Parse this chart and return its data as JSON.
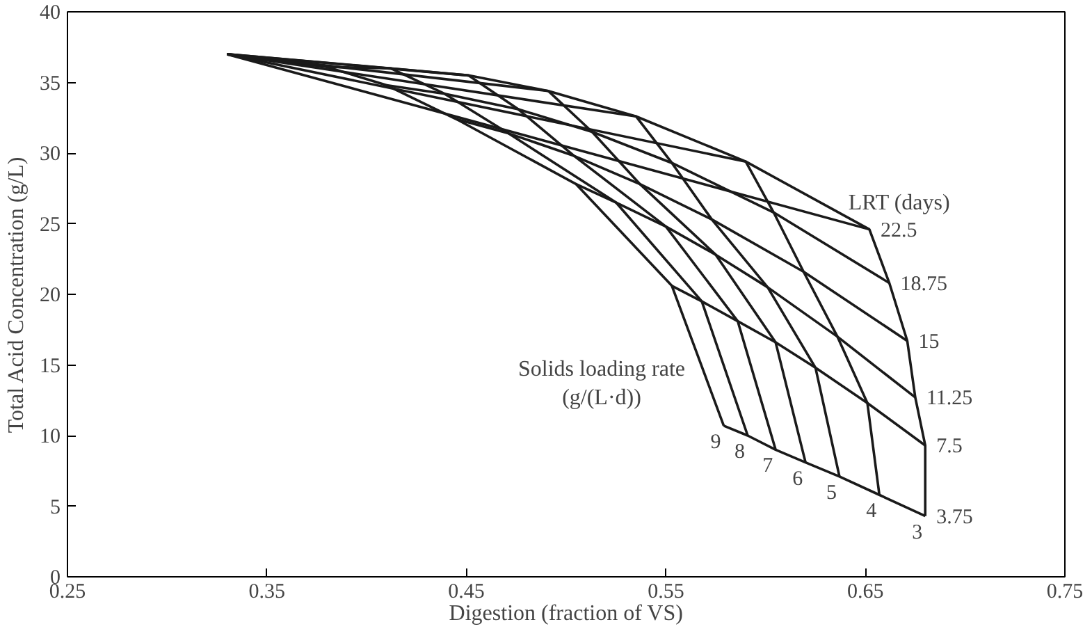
{
  "chart_data": {
    "type": "line",
    "xlabel": "Digestion (fraction of VS)",
    "ylabel": "Total Acid Concentration (g/L)",
    "xlim": [
      0.25,
      0.75
    ],
    "ylim": [
      0,
      40
    ],
    "xticks": [
      0.25,
      0.35,
      0.45,
      0.55,
      0.65,
      0.75
    ],
    "yticks": [
      0,
      5,
      10,
      15,
      20,
      25,
      30,
      35,
      40
    ],
    "grid": false,
    "legend": false,
    "marker": "none",
    "line_style": "solid",
    "annotations": [
      "LRT (days)",
      "Solids loading rate\n(g/(L·d))"
    ],
    "series": [
      {
        "name": "9",
        "color": "#1a1a1a",
        "x": [
          0.33,
          0.38,
          0.41,
          0.445,
          0.505,
          0.553,
          0.579
        ],
        "values": [
          37.0,
          36.1,
          34.8,
          32.4,
          27.8,
          20.6,
          10.7
        ]
      },
      {
        "name": "8",
        "color": "#1a1a1a",
        "x": [
          0.33,
          0.412,
          0.439,
          0.471,
          0.525,
          0.568,
          0.591
        ],
        "values": [
          37.0,
          36.0,
          34.2,
          31.4,
          26.5,
          19.5,
          10.0
        ]
      },
      {
        "name": "7",
        "color": "#1a1a1a",
        "x": [
          0.33,
          0.451,
          0.476,
          0.504,
          0.55,
          0.586,
          0.605
        ],
        "values": [
          37.0,
          35.5,
          33.1,
          29.8,
          24.8,
          18.1,
          9.0
        ]
      },
      {
        "name": "6",
        "color": "#1a1a1a",
        "x": [
          0.33,
          0.491,
          0.513,
          0.537,
          0.575,
          0.605,
          0.62
        ],
        "values": [
          37.0,
          34.4,
          31.5,
          27.8,
          22.8,
          16.6,
          8.1
        ]
      },
      {
        "name": "5",
        "color": "#1a1a1a",
        "x": [
          0.33,
          0.535,
          0.553,
          0.573,
          0.601,
          0.625,
          0.637
        ],
        "values": [
          37.0,
          32.6,
          29.3,
          25.3,
          20.5,
          14.8,
          7.1
        ]
      },
      {
        "name": "4",
        "color": "#1a1a1a",
        "x": [
          0.33,
          0.59,
          0.604,
          0.619,
          0.636,
          0.651,
          0.657
        ],
        "values": [
          37.0,
          29.4,
          25.8,
          21.6,
          17.0,
          12.3,
          5.8
        ]
      },
      {
        "name": "3",
        "color": "#1a1a1a",
        "x": [
          0.33,
          0.652,
          0.662,
          0.671,
          0.675,
          0.68,
          0.68
        ],
        "values": [
          37.0,
          24.6,
          20.8,
          16.7,
          12.7,
          9.3,
          4.3
        ]
      },
      {
        "name": "3.75",
        "color": "#1a1a1a",
        "x": [
          0.579,
          0.591,
          0.605,
          0.62,
          0.637,
          0.657,
          0.68
        ],
        "values": [
          10.7,
          10.0,
          9.0,
          8.1,
          7.1,
          5.8,
          4.3
        ]
      },
      {
        "name": "7.5",
        "color": "#1a1a1a",
        "x": [
          0.553,
          0.568,
          0.586,
          0.605,
          0.625,
          0.651,
          0.68
        ],
        "values": [
          20.6,
          19.5,
          18.1,
          16.6,
          14.8,
          12.3,
          9.3
        ]
      },
      {
        "name": "11.25",
        "color": "#1a1a1a",
        "x": [
          0.505,
          0.525,
          0.55,
          0.575,
          0.601,
          0.636,
          0.675
        ],
        "values": [
          27.8,
          26.5,
          24.8,
          22.8,
          20.5,
          17.0,
          12.7
        ]
      },
      {
        "name": "15",
        "color": "#1a1a1a",
        "x": [
          0.445,
          0.471,
          0.504,
          0.537,
          0.573,
          0.619,
          0.671
        ],
        "values": [
          32.4,
          31.4,
          29.8,
          27.8,
          25.3,
          21.6,
          16.7
        ]
      },
      {
        "name": "18.75",
        "color": "#1a1a1a",
        "x": [
          0.41,
          0.439,
          0.476,
          0.513,
          0.553,
          0.604,
          0.662
        ],
        "values": [
          34.8,
          34.2,
          33.1,
          31.5,
          29.3,
          25.8,
          20.8
        ]
      },
      {
        "name": "22.5",
        "color": "#1a1a1a",
        "x": [
          0.38,
          0.412,
          0.451,
          0.491,
          0.535,
          0.59,
          0.652
        ],
        "values": [
          36.1,
          36.0,
          35.5,
          34.4,
          32.6,
          29.4,
          24.6
        ]
      }
    ]
  }
}
